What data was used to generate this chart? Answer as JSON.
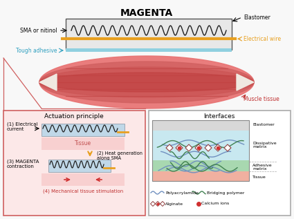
{
  "title": "MAGENTA",
  "top_labels": {
    "sma": "SMA or nitinol",
    "elastomer": "Elastomer",
    "electrical_wire": "Electrical wire",
    "tough_adhesive": "Tough adhesive",
    "muscle_tissue": "Muscle tissue"
  },
  "actuation_title": "Actuation principle",
  "interfaces_title": "Interfaces",
  "actuation_steps": [
    "(1) Electrical\ncurrent",
    "(2) Heat generation\nalong SMA",
    "(3) MAGENTA\ncontraction",
    "(4) Mechanical tissue stimulation"
  ],
  "interface_labels": [
    "Elastomer",
    "Dissipative\nmatrix",
    "Adhesive\nmatrix",
    "Tissue"
  ],
  "legend_items": [
    "Polyacrylamide",
    "Bridging polymer",
    "Alginate",
    "Calcium ions"
  ],
  "colors": {
    "background": "#f5f5f5",
    "muscle_red": "#e87070",
    "muscle_dark": "#c85050",
    "elastomer_gray": "#d0d0d0",
    "wire_gold": "#e8a020",
    "spring_dark": "#202020",
    "tough_adhesive": "#90d0e0",
    "panel_pink": "#fce8e8",
    "panel_border": "#d06060",
    "tissue_pink": "#f8d0d0",
    "sma_box_blue": "#c0d8e8",
    "arrow_gold": "#e8a020",
    "arrow_red": "#e03030",
    "interfaces_bg": "#e8f4f8",
    "interfaces_green": "#80c080",
    "interfaces_red_pink": "#f0a0a0",
    "polyacrylamide_blue": "#7090c0",
    "bridging_green": "#408050",
    "alginate_red": "#c03030",
    "dashed_label": "#888888"
  }
}
